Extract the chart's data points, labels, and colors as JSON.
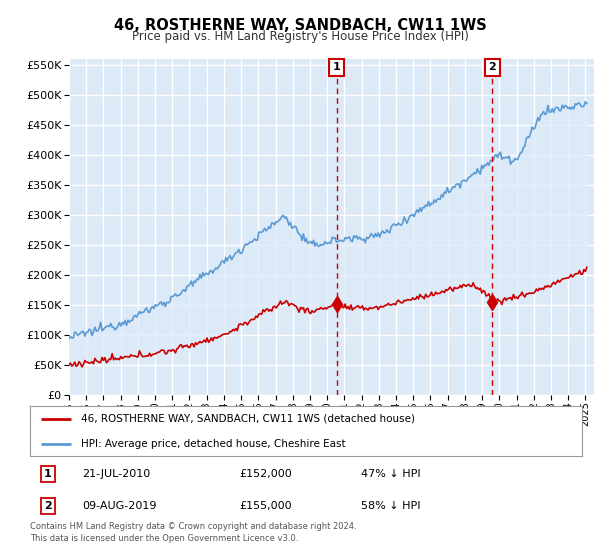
{
  "title": "46, ROSTHERNE WAY, SANDBACH, CW11 1WS",
  "subtitle": "Price paid vs. HM Land Registry's House Price Index (HPI)",
  "legend_line1": "46, ROSTHERNE WAY, SANDBACH, CW11 1WS (detached house)",
  "legend_line2": "HPI: Average price, detached house, Cheshire East",
  "annotation1_date": "21-JUL-2010",
  "annotation1_price": "£152,000",
  "annotation1_hpi": "47% ↓ HPI",
  "annotation2_date": "09-AUG-2019",
  "annotation2_price": "£155,000",
  "annotation2_hpi": "58% ↓ HPI",
  "footer": "Contains HM Land Registry data © Crown copyright and database right 2024.\nThis data is licensed under the Open Government Licence v3.0.",
  "red_color": "#cc0000",
  "blue_color": "#5b9bd5",
  "fill_color": "#dce9f7",
  "background_color": "#dce9f7",
  "grid_color": "#ffffff",
  "ylim": [
    0,
    560000
  ],
  "yticks": [
    0,
    50000,
    100000,
    150000,
    200000,
    250000,
    300000,
    350000,
    400000,
    450000,
    500000,
    550000
  ],
  "marker1_x": 2010.55,
  "marker1_y": 152000,
  "marker2_x": 2019.6,
  "marker2_y": 155000,
  "xmin": 1995.0,
  "xmax": 2025.5
}
